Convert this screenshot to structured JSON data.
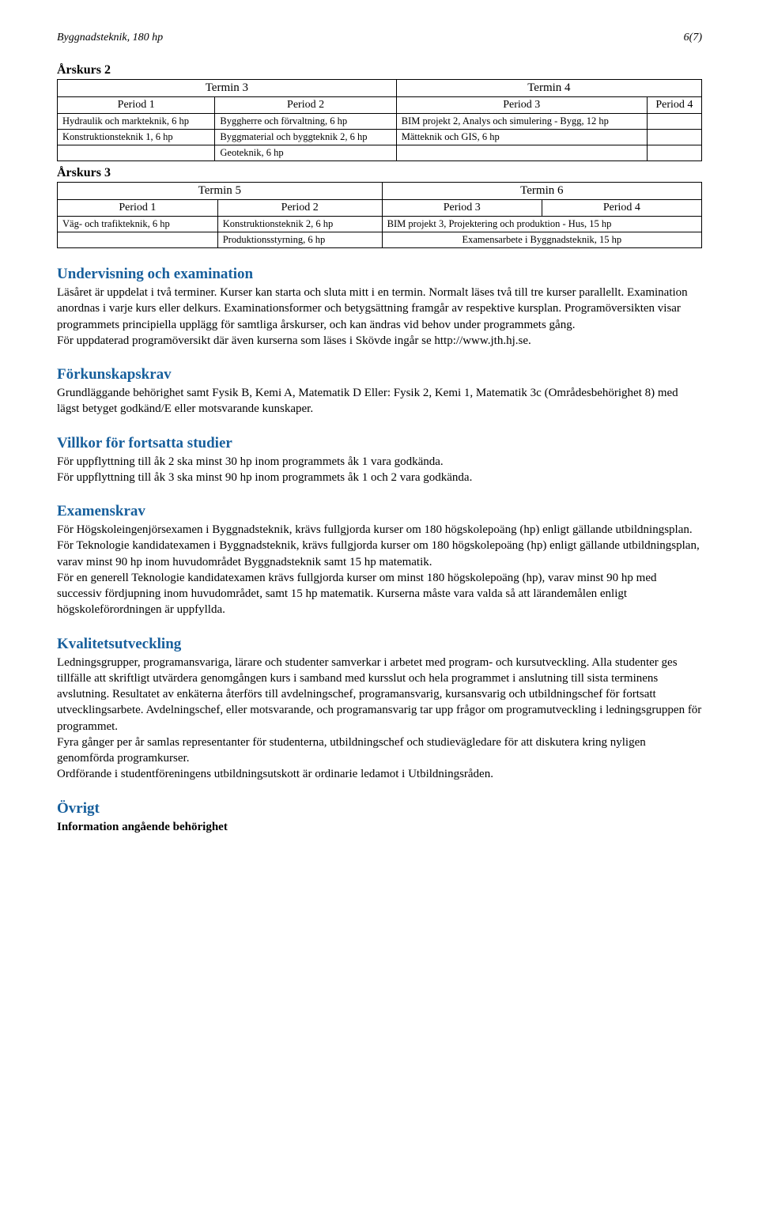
{
  "header": {
    "left": "Byggnadsteknik, 180 hp",
    "right": "6(7)"
  },
  "arskurs2": {
    "label": "Årskurs 2",
    "termin_left": "Termin 3",
    "termin_right": "Termin 4",
    "periods": [
      "Period 1",
      "Period 2",
      "Period 3",
      "Period 4"
    ],
    "rows": [
      [
        "Hydraulik och markteknik, 6 hp",
        "Byggherre och förvaltning, 6 hp",
        "BIM projekt 2, Analys och simulering - Bygg, 12 hp",
        ""
      ],
      [
        "Konstruktionsteknik 1, 6 hp",
        "Byggmaterial och byggteknik 2, 6 hp",
        "Mätteknik och GIS, 6 hp",
        ""
      ],
      [
        "",
        "Geoteknik, 6 hp",
        "",
        ""
      ]
    ]
  },
  "arskurs3": {
    "label": "Årskurs 3",
    "termin_left": "Termin 5",
    "termin_right": "Termin 6",
    "periods": [
      "Period 1",
      "Period 2",
      "Period 3",
      "Period 4"
    ],
    "rows": [
      [
        "Väg- och trafikteknik, 6 hp",
        "Konstruktionsteknik 2, 6 hp",
        "BIM projekt 3, Projektering och produktion - Hus, 15 hp"
      ],
      [
        "",
        "Produktionsstyrning, 6 hp",
        "Examensarbete i Byggnadsteknik, 15 hp"
      ]
    ]
  },
  "sections": {
    "undervisning": {
      "title": "Undervisning och examination",
      "body": "Läsåret är uppdelat i två terminer. Kurser kan starta och sluta mitt i en termin. Normalt läses två till tre kurser parallellt. Examination anordnas i varje kurs eller delkurs. Examinationsformer och betygsättning framgår av respektive kursplan. Programöversikten visar programmets principiella upplägg för samtliga årskurser, och kan ändras vid behov under programmets gång.",
      "body2": "För uppdaterad programöversikt där även kurserna som läses i Skövde ingår se http://www.jth.hj.se."
    },
    "forkunskap": {
      "title": "Förkunskapskrav",
      "body": "Grundläggande behörighet samt Fysik B, Kemi A, Matematik D Eller: Fysik 2, Kemi 1, Matematik 3c (Områdesbehörighet 8) med lägst betyget godkänd/E eller motsvarande kunskaper."
    },
    "villkor": {
      "title": "Villkor för fortsatta studier",
      "line1": "För uppflyttning till åk 2 ska minst 30 hp inom programmets åk 1 vara godkända.",
      "line2": "För uppflyttning till åk 3 ska minst 90 hp inom programmets åk 1 och 2 vara godkända."
    },
    "examenskrav": {
      "title": "Examenskrav",
      "p1": "För Högskoleingenjörsexamen i Byggnadsteknik, krävs fullgjorda kurser om 180 högskolepoäng (hp) enligt gällande utbildningsplan.",
      "p2": "För Teknologie kandidatexamen i Byggnadsteknik, krävs fullgjorda kurser om 180 högskolepoäng (hp) enligt gällande utbildningsplan, varav minst 90 hp inom huvudområdet Byggnadsteknik samt 15 hp matematik.",
      "p3": "För en generell Teknologie kandidatexamen krävs fullgjorda kurser om minst 180 högskolepoäng (hp), varav minst 90 hp med successiv fördjupning inom huvudområdet, samt 15 hp matematik. Kurserna måste vara valda så att lärandemålen enligt högskoleförordningen är uppfyllda."
    },
    "kvalitet": {
      "title": "Kvalitetsutveckling",
      "p1": "Ledningsgrupper, programansvariga, lärare och studenter samverkar i arbetet med program- och kursutveckling. Alla studenter ges tillfälle att skriftligt utvärdera genomgången kurs i samband med kursslut och hela programmet i anslutning till sista terminens avslutning. Resultatet av enkäterna återförs till avdelningschef, programansvarig, kursansvarig och utbildningschef för fortsatt utvecklingsarbete. Avdelningschef, eller motsvarande, och programansvarig tar upp frågor om programutveckling i ledningsgruppen för programmet.",
      "p2": "Fyra gånger per år samlas representanter för studenterna, utbildningschef och studievägledare för att diskutera kring nyligen genomförda programkurser.",
      "p3": "Ordförande i studentföreningens utbildningsutskott är ordinarie ledamot i Utbildningsråden."
    },
    "ovrigt": {
      "title": "Övrigt",
      "sub": "Information angående behörighet"
    }
  },
  "colors": {
    "heading": "#175f9c",
    "text": "#000000",
    "background": "#ffffff",
    "border": "#000000"
  }
}
